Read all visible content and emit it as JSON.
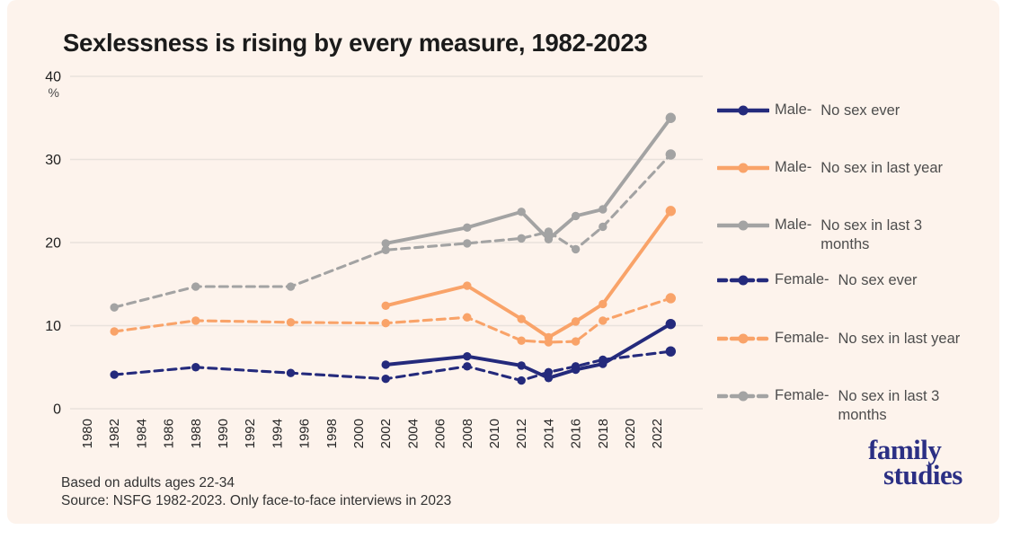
{
  "page": {
    "background_color": "#fdf3ec",
    "title": "Sexlessness is rising by every measure, 1982-2023"
  },
  "chart_data": {
    "type": "line",
    "title": "Sexlessness is rising by every measure, 1982-2023",
    "y_axis_unit": "%",
    "ylim": [
      0,
      40
    ],
    "y_ticks": [
      0,
      10,
      20,
      30,
      40
    ],
    "grid": true,
    "legend_position": "right",
    "x_tick_labels": [
      "1980",
      "1982",
      "1984",
      "1986",
      "1988",
      "1990",
      "1992",
      "1994",
      "1996",
      "1998",
      "2000",
      "2002",
      "2004",
      "2006",
      "2008",
      "2010",
      "2012",
      "2014",
      "2016",
      "2018",
      "2020",
      "2022"
    ],
    "x": [
      1982,
      1988,
      1995,
      2002,
      2008,
      2012,
      2014,
      2016,
      2018,
      2023
    ],
    "series": [
      {
        "name": "Male-  No sex ever",
        "color": "#242a7c",
        "style": "solid",
        "values": [
          null,
          null,
          null,
          5.3,
          6.3,
          5.2,
          3.7,
          4.7,
          5.4,
          10.2
        ]
      },
      {
        "name": "Male-  No sex in last year",
        "color": "#f9a369",
        "style": "solid",
        "values": [
          null,
          null,
          null,
          12.4,
          14.8,
          10.8,
          8.6,
          10.5,
          12.6,
          23.8
        ]
      },
      {
        "name": "Male-  No sex in last 3 months",
        "color": "#a3a3a3",
        "style": "solid",
        "values": [
          null,
          null,
          null,
          19.9,
          21.8,
          23.7,
          20.4,
          23.2,
          24.0,
          35.0
        ]
      },
      {
        "name": "Female-  No sex ever",
        "color": "#242a7c",
        "style": "dashed",
        "values": [
          4.1,
          5.0,
          4.3,
          3.6,
          5.1,
          3.4,
          4.4,
          5.1,
          5.9,
          6.9
        ]
      },
      {
        "name": "Female-  No sex in last year",
        "color": "#f9a369",
        "style": "dashed",
        "values": [
          9.3,
          10.6,
          10.4,
          10.3,
          11.0,
          8.2,
          8.0,
          8.1,
          10.6,
          13.3
        ]
      },
      {
        "name": "Female-  No sex in last 3 months",
        "color": "#a3a3a3",
        "style": "dashed",
        "values": [
          12.2,
          14.7,
          14.7,
          19.1,
          19.9,
          20.5,
          21.3,
          19.2,
          21.9,
          30.6
        ]
      }
    ]
  },
  "legend": {
    "items": [
      {
        "prefix": "Male-",
        "label": "No sex ever"
      },
      {
        "prefix": "Male-",
        "label": "No sex in last year"
      },
      {
        "prefix": "Male-",
        "label": "No sex in last 3 months"
      },
      {
        "prefix": "Female-",
        "label": "No sex ever"
      },
      {
        "prefix": "Female-",
        "label": "No sex in last year"
      },
      {
        "prefix": "Female-",
        "label": "No sex in last 3 months"
      }
    ]
  },
  "footer": {
    "note1": "Based on adults ages 22-34",
    "note2": "Source: NSFG 1982-2023. Only face-to-face interviews in 2023"
  },
  "logo": {
    "line1": "family",
    "line2": "studies",
    "color": "#2b2f84"
  },
  "style": {
    "grid_color": "#e9e2dc",
    "title_color": "#1b1b1b",
    "legend_text_color": "#4d4d4d"
  }
}
